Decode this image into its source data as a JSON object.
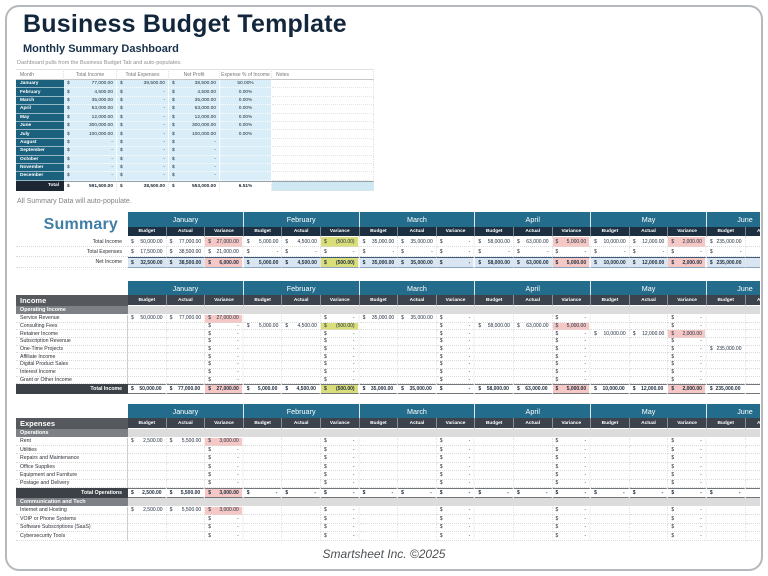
{
  "page": {
    "title": "Business Budget Template",
    "subtitle": "Monthly Summary Dashboard",
    "dashboard_note": "Dashboard pulls from the Business Budget Tab and auto-populates.",
    "summary_note": "All Summary Data will auto-populate.",
    "footer": "Smartsheet Inc. ©2025"
  },
  "colors": {
    "title_navy": "#13273c",
    "month_teal": "#236c8b",
    "dashboard_teal": "#1b617d",
    "header_dark": "#3c434c",
    "section_gray": "#55585c",
    "subsection_gray": "#7d8084",
    "light_blue_cell": "#d9eef8",
    "net_income_blue": "#d9e6f2",
    "variance_pink": "#f5c8c6",
    "variance_green": "#d9de7b"
  },
  "dashboard": {
    "headers": [
      "Month",
      "Total Income",
      "Total Expenses",
      "Net Profit",
      "Expense % of Income",
      "Notes"
    ],
    "rows": [
      {
        "month": "January",
        "income": "77,000.00",
        "expenses": "38,500.00",
        "net": "38,500.00",
        "pct": "50.00%"
      },
      {
        "month": "February",
        "income": "4,500.00",
        "expenses": "-",
        "net": "4,500.00",
        "pct": "0.00%"
      },
      {
        "month": "March",
        "income": "35,000.00",
        "expenses": "-",
        "net": "35,000.00",
        "pct": "0.00%"
      },
      {
        "month": "April",
        "income": "63,000.00",
        "expenses": "-",
        "net": "63,000.00",
        "pct": "0.00%"
      },
      {
        "month": "May",
        "income": "12,000.00",
        "expenses": "-",
        "net": "12,000.00",
        "pct": "0.00%"
      },
      {
        "month": "June",
        "income": "300,000.00",
        "expenses": "-",
        "net": "300,000.00",
        "pct": "0.00%"
      },
      {
        "month": "July",
        "income": "100,000.00",
        "expenses": "-",
        "net": "100,000.00",
        "pct": "0.00%"
      },
      {
        "month": "August",
        "income": "-",
        "expenses": "-",
        "net": "-",
        "pct": ""
      },
      {
        "month": "September",
        "income": "-",
        "expenses": "-",
        "net": "-",
        "pct": ""
      },
      {
        "month": "October",
        "income": "-",
        "expenses": "-",
        "net": "-",
        "pct": ""
      },
      {
        "month": "November",
        "income": "-",
        "expenses": "-",
        "net": "-",
        "pct": ""
      },
      {
        "month": "December",
        "income": "-",
        "expenses": "-",
        "net": "-",
        "pct": ""
      }
    ],
    "total": {
      "label": "Total",
      "income": "591,500.00",
      "expenses": "38,500.00",
      "net": "553,000.00",
      "pct": "6.51%"
    }
  },
  "months": [
    "January",
    "February",
    "March",
    "April",
    "May",
    "June"
  ],
  "bav": [
    "Budget",
    "Actual",
    "Variance"
  ],
  "summary": {
    "corner": "Summary",
    "rows": [
      {
        "t": "r",
        "label": "Total Income",
        "c": [
          "50,000.00",
          "77,000.00",
          "27,000.00p",
          "5,000.00",
          "4,500.00",
          "(500.00)g",
          "35,000.00",
          "35,000.00",
          "-",
          "58,000.00",
          "63,000.00",
          "5,000.00p",
          "10,000.00",
          "12,000.00",
          "2,000.00p",
          "235,000.00"
        ]
      },
      {
        "t": "r",
        "label": "Total Expenses",
        "c": [
          "17,500.00",
          "38,500.00",
          "21,000.00",
          "-",
          "-",
          "-",
          "-",
          "-",
          "-",
          "-",
          "-",
          "-",
          "-",
          "-",
          "-",
          "-"
        ]
      },
      {
        "t": "blue",
        "label": "Net Income",
        "c": [
          "32,500.00",
          "38,500.00",
          "6,000.00p",
          "5,000.00",
          "4,500.00",
          "(500.00)g",
          "35,000.00",
          "35,000.00",
          "-",
          "58,000.00",
          "63,000.00",
          "5,000.00p",
          "10,000.00",
          "12,000.00",
          "2,000.00p",
          "235,000.00"
        ]
      }
    ]
  },
  "income": {
    "section": "Income",
    "rows": [
      {
        "t": "sub",
        "label": "Operating Income"
      },
      {
        "t": "r",
        "label": "Service Revenue",
        "c": [
          "50,000.00",
          "77,000.00",
          "27,000.00p",
          "",
          "",
          "-",
          "35,000.00",
          "35,000.00",
          "-",
          "",
          "",
          "-",
          "",
          "",
          "-",
          ""
        ]
      },
      {
        "t": "r",
        "label": "Consulting Fees",
        "c": [
          "",
          "",
          "-",
          "5,000.00",
          "4,500.00",
          "(500.00)g",
          "",
          "",
          "-",
          "58,000.00",
          "63,000.00",
          "5,000.00p",
          "",
          "",
          "-",
          ""
        ]
      },
      {
        "t": "r",
        "label": "Retainer Income",
        "c": [
          "",
          "",
          "-",
          "",
          "",
          "-",
          "",
          "",
          "-",
          "",
          "",
          "-",
          "10,000.00",
          "12,000.00",
          "2,000.00p",
          ""
        ]
      },
      {
        "t": "r",
        "label": "Subscription Revenue",
        "c": [
          "",
          "",
          "-",
          "",
          "",
          "-",
          "",
          "",
          "-",
          "",
          "",
          "-",
          "",
          "",
          "-",
          ""
        ]
      },
      {
        "t": "r",
        "label": "One-Time Projects",
        "c": [
          "",
          "",
          "-",
          "",
          "",
          "-",
          "",
          "",
          "-",
          "",
          "",
          "-",
          "",
          "",
          "-",
          "235,000.00"
        ]
      },
      {
        "t": "r",
        "label": "Affiliate Income",
        "c": [
          "",
          "",
          "-",
          "",
          "",
          "-",
          "",
          "",
          "-",
          "",
          "",
          "-",
          "",
          "",
          "-",
          ""
        ]
      },
      {
        "t": "r",
        "label": "Digital Product Sales",
        "c": [
          "",
          "",
          "-",
          "",
          "",
          "-",
          "",
          "",
          "-",
          "",
          "",
          "-",
          "",
          "",
          "-",
          ""
        ]
      },
      {
        "t": "r",
        "label": "Interest Income",
        "c": [
          "",
          "",
          "-",
          "",
          "",
          "-",
          "",
          "",
          "-",
          "",
          "",
          "-",
          "",
          "",
          "-",
          ""
        ]
      },
      {
        "t": "r",
        "label": "Grant or Other Income",
        "c": [
          "",
          "",
          "-",
          "",
          "",
          "-",
          "",
          "",
          "-",
          "",
          "",
          "-",
          "",
          "",
          "-",
          ""
        ]
      },
      {
        "t": "tot",
        "label": "Total Income",
        "c": [
          "50,000.00",
          "77,000.00",
          "27,000.00p",
          "5,000.00",
          "4,500.00",
          "(500.00)g",
          "35,000.00",
          "35,000.00",
          "-",
          "58,000.00",
          "63,000.00",
          "5,000.00p",
          "10,000.00",
          "12,000.00",
          "2,000.00p",
          "235,000.00"
        ]
      }
    ]
  },
  "expenses": {
    "section": "Expenses",
    "rows": [
      {
        "t": "sub",
        "label": "Operations"
      },
      {
        "t": "r",
        "label": "Rent",
        "c": [
          "2,500.00",
          "5,500.00",
          "3,000.00p",
          "",
          "",
          "-",
          "",
          "",
          "-",
          "",
          "",
          "-",
          "",
          "",
          "-",
          ""
        ]
      },
      {
        "t": "r",
        "label": "Utilities",
        "c": [
          "",
          "",
          "-",
          "",
          "",
          "-",
          "",
          "",
          "-",
          "",
          "",
          "-",
          "",
          "",
          "-",
          ""
        ]
      },
      {
        "t": "r",
        "label": "Repairs and Maintenance",
        "c": [
          "",
          "",
          "-",
          "",
          "",
          "-",
          "",
          "",
          "-",
          "",
          "",
          "-",
          "",
          "",
          "-",
          ""
        ]
      },
      {
        "t": "r",
        "label": "Office Supplies",
        "c": [
          "",
          "",
          "-",
          "",
          "",
          "-",
          "",
          "",
          "-",
          "",
          "",
          "-",
          "",
          "",
          "-",
          ""
        ]
      },
      {
        "t": "r",
        "label": "Equipment and Furniture",
        "c": [
          "",
          "",
          "-",
          "",
          "",
          "-",
          "",
          "",
          "-",
          "",
          "",
          "-",
          "",
          "",
          "-",
          ""
        ]
      },
      {
        "t": "r",
        "label": "Postage and Delivery",
        "c": [
          "",
          "",
          "-",
          "",
          "",
          "-",
          "",
          "",
          "-",
          "",
          "",
          "-",
          "",
          "",
          "-",
          ""
        ]
      },
      {
        "t": "tot",
        "label": "Total Operations",
        "c": [
          "2,500.00",
          "5,500.00",
          "3,000.00p",
          "-",
          "-",
          "-",
          "-",
          "-",
          "-",
          "-",
          "-",
          "-",
          "-",
          "-",
          "-",
          "-"
        ]
      },
      {
        "t": "sub",
        "label": "Communication and Tech"
      },
      {
        "t": "r",
        "label": "Internet and Hosting",
        "c": [
          "2,500.00",
          "5,500.00",
          "3,000.00p",
          "",
          "",
          "-",
          "",
          "",
          "-",
          "",
          "",
          "-",
          "",
          "",
          "-",
          ""
        ]
      },
      {
        "t": "r",
        "label": "VOIP or Phone Systems",
        "c": [
          "",
          "",
          "-",
          "",
          "",
          "-",
          "",
          "",
          "-",
          "",
          "",
          "-",
          "",
          "",
          "-",
          ""
        ]
      },
      {
        "t": "r",
        "label": "Software Subscriptions (SaaS)",
        "c": [
          "",
          "",
          "-",
          "",
          "",
          "-",
          "",
          "",
          "-",
          "",
          "",
          "-",
          "",
          "",
          "-",
          ""
        ]
      },
      {
        "t": "r",
        "label": "Cybersecurity Tools",
        "c": [
          "",
          "",
          "-",
          "",
          "",
          "-",
          "",
          "",
          "-",
          "",
          "",
          "-",
          "",
          "",
          "-",
          ""
        ]
      }
    ]
  }
}
